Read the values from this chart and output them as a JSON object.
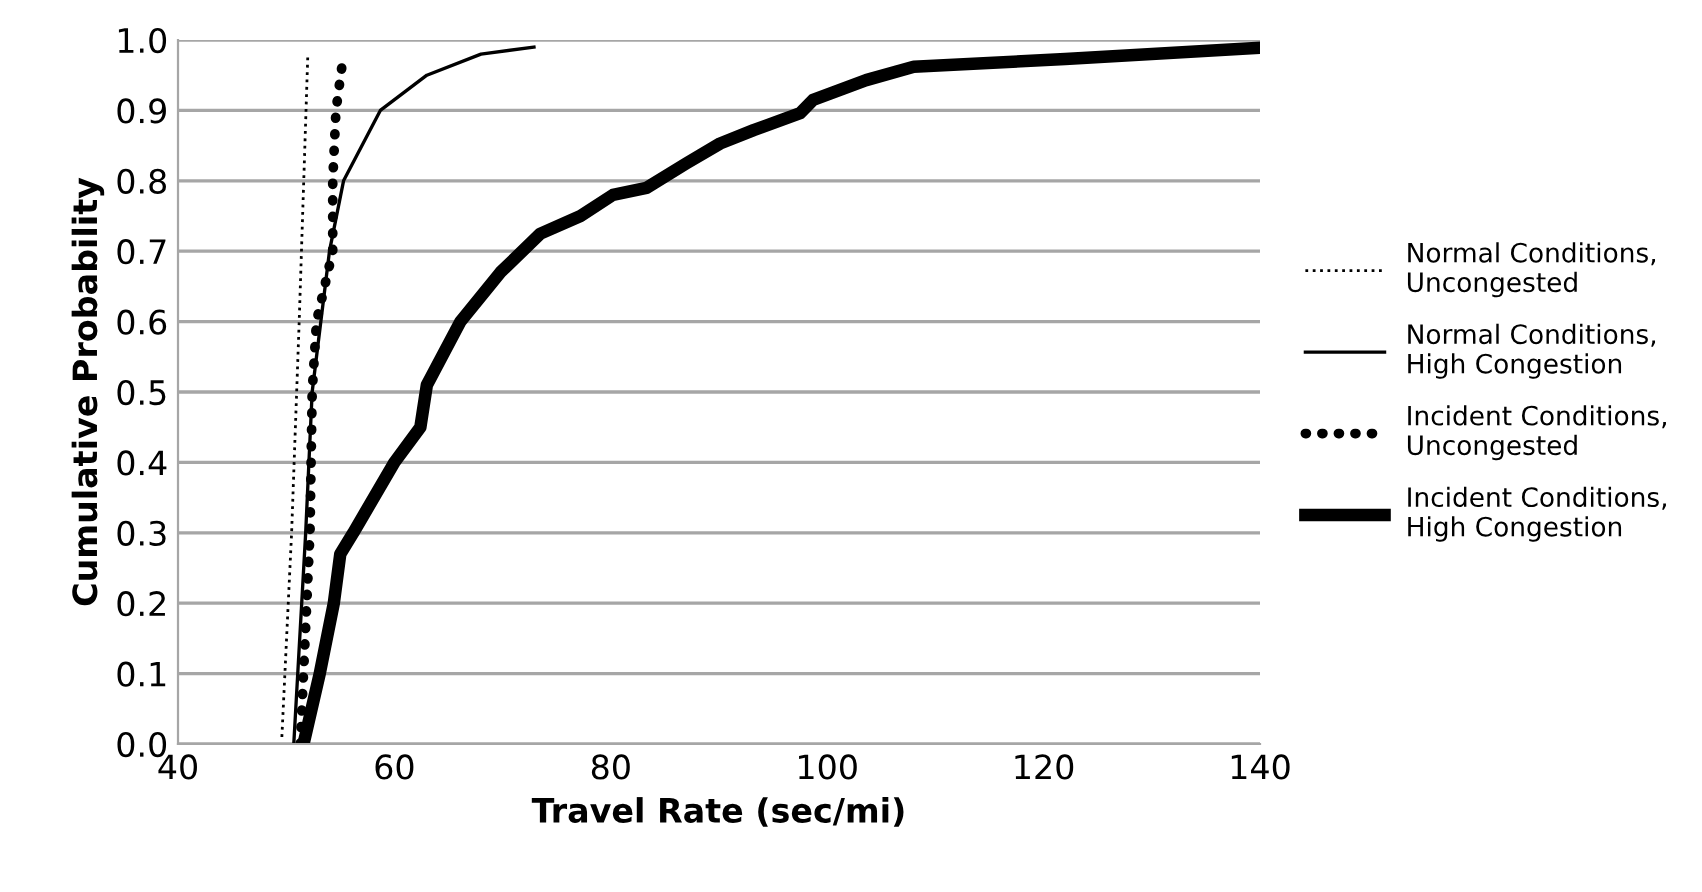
{
  "chart_data": {
    "type": "line",
    "xlabel": "Travel Rate (sec/mi)",
    "ylabel": "Cumulative Probability",
    "xlim": [
      40,
      140
    ],
    "xticks": [
      40,
      60,
      80,
      100,
      120,
      140
    ],
    "ylim": [
      0,
      1
    ],
    "yticks": [
      {
        "value": 0,
        "label": "0.0"
      },
      0.1,
      0.2,
      0.3,
      0.4,
      0.5,
      0.6,
      0.7,
      0.8,
      0.9,
      {
        "value": 1,
        "label": "1.0"
      }
    ],
    "grid": "y",
    "legend": "right",
    "marker": "none",
    "series": [
      {
        "name": "Normal Conditions,\nUncongested",
        "color": "#000000",
        "line_style": "dotted",
        "x": [
          49.6,
          50.5,
          51.2,
          52.0
        ],
        "values": [
          0.01,
          0.3,
          0.6,
          0.98
        ]
      },
      {
        "name": "Normal Conditions,\nHigh Congestion",
        "color": "#000000",
        "line_style": "solid",
        "x": [
          50.7,
          51.8,
          52.4,
          54.0,
          55.3,
          58.7,
          63,
          68,
          72.9
        ],
        "values": [
          0.0,
          0.3,
          0.5,
          0.7,
          0.8,
          0.9,
          0.95,
          0.98,
          0.99
        ]
      },
      {
        "name": "Incident Conditions,\nUncongested",
        "color": "#000000",
        "line_style": "dotted",
        "x": [
          51.3,
          51.6,
          52.2,
          52.4,
          52.8,
          54.3,
          54.3,
          54.6,
          55.3
        ],
        "values": [
          0.0,
          0.1,
          0.3,
          0.5,
          0.6,
          0.7,
          0.8,
          0.9,
          0.98
        ]
      },
      {
        "name": "Incident Conditions,\nHigh Congestion",
        "color": "#000000",
        "line_style": "solid",
        "x": [
          51.6,
          53.1,
          54.4,
          55.0,
          56.2,
          60.0,
          62.4,
          63.0,
          66.1,
          69.8,
          73.5,
          77.2,
          80.2,
          83.3,
          87.0,
          90.1,
          93.2,
          97.5,
          98.7,
          103.6,
          108,
          122,
          140
        ],
        "values": [
          0.0,
          0.1,
          0.2,
          0.27,
          0.3,
          0.4,
          0.45,
          0.51,
          0.6,
          0.67,
          0.725,
          0.75,
          0.78,
          0.79,
          0.825,
          0.853,
          0.872,
          0.896,
          0.915,
          0.943,
          0.962,
          0.973,
          0.989
        ]
      }
    ]
  }
}
